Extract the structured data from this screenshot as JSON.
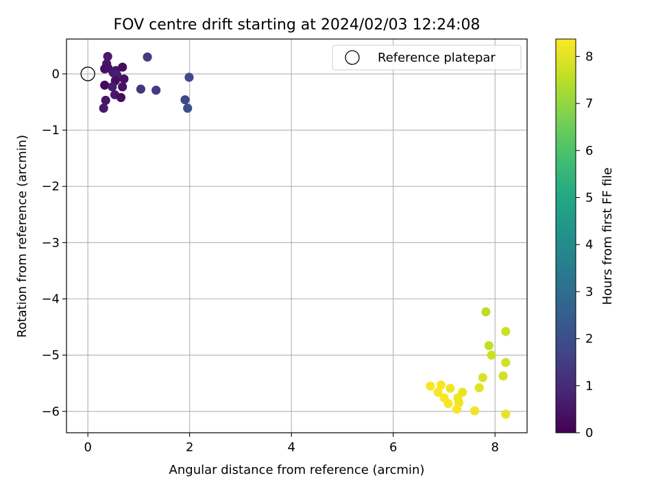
{
  "chart_data": {
    "type": "scatter",
    "title": "FOV centre drift starting at 2024/02/03 12:24:08",
    "xlabel": "Angular distance from reference (arcmin)",
    "ylabel": "Rotation from reference (arcmin)",
    "xlim": [
      -0.42,
      8.63
    ],
    "ylim": [
      -6.38,
      0.62
    ],
    "xticks": [
      0,
      2,
      4,
      6,
      8
    ],
    "yticks": [
      0,
      -1,
      -2,
      -3,
      -4,
      -5,
      -6
    ],
    "grid": true,
    "legend": {
      "placement": "top-right",
      "entries": [
        "Reference platepar"
      ]
    },
    "reference_point": {
      "x": 0,
      "y": 0,
      "label": "Reference platepar"
    },
    "colorbar": {
      "label": "Hours from first FF file",
      "colormap": "viridis",
      "range": [
        0,
        8.37
      ],
      "ticks": [
        0,
        1,
        2,
        3,
        4,
        5,
        6,
        7,
        8
      ]
    },
    "series": [
      {
        "points": [
          {
            "x": 0.39,
            "y": 0.31,
            "c": 0.6
          },
          {
            "x": 0.37,
            "y": 0.18,
            "c": 0.5
          },
          {
            "x": 0.33,
            "y": 0.09,
            "c": 0.3
          },
          {
            "x": 0.4,
            "y": 0.1,
            "c": 0.4
          },
          {
            "x": 0.55,
            "y": 0.06,
            "c": 0.5
          },
          {
            "x": 0.5,
            "y": 0.02,
            "c": 0.6
          },
          {
            "x": 0.68,
            "y": 0.12,
            "c": 0.3
          },
          {
            "x": 0.57,
            "y": -0.02,
            "c": 0.7
          },
          {
            "x": 0.71,
            "y": -0.09,
            "c": 0.4
          },
          {
            "x": 0.54,
            "y": -0.12,
            "c": 0.3
          },
          {
            "x": 0.33,
            "y": -0.2,
            "c": 0.2
          },
          {
            "x": 0.48,
            "y": -0.23,
            "c": 0.7
          },
          {
            "x": 0.68,
            "y": -0.23,
            "c": 0.4
          },
          {
            "x": 0.53,
            "y": -0.37,
            "c": 0.6
          },
          {
            "x": 0.65,
            "y": -0.42,
            "c": 0.3
          },
          {
            "x": 0.35,
            "y": -0.47,
            "c": 0.5
          },
          {
            "x": 0.31,
            "y": -0.61,
            "c": 0.6
          },
          {
            "x": 1.17,
            "y": 0.3,
            "c": 1.5
          },
          {
            "x": 1.04,
            "y": -0.27,
            "c": 1.3
          },
          {
            "x": 1.34,
            "y": -0.29,
            "c": 1.4
          },
          {
            "x": 1.99,
            "y": -0.06,
            "c": 1.9
          },
          {
            "x": 1.91,
            "y": -0.46,
            "c": 1.8
          },
          {
            "x": 1.96,
            "y": -0.61,
            "c": 2.0
          },
          {
            "x": 7.82,
            "y": -4.23,
            "c": 7.5
          },
          {
            "x": 8.21,
            "y": -4.58,
            "c": 7.7
          },
          {
            "x": 7.88,
            "y": -4.83,
            "c": 7.6
          },
          {
            "x": 7.93,
            "y": -5.0,
            "c": 7.7
          },
          {
            "x": 8.21,
            "y": -5.13,
            "c": 7.8
          },
          {
            "x": 8.16,
            "y": -5.37,
            "c": 7.8
          },
          {
            "x": 7.76,
            "y": -5.4,
            "c": 7.9
          },
          {
            "x": 6.73,
            "y": -5.55,
            "c": 8.3
          },
          {
            "x": 6.94,
            "y": -5.53,
            "c": 8.3
          },
          {
            "x": 7.12,
            "y": -5.59,
            "c": 8.2
          },
          {
            "x": 6.88,
            "y": -5.66,
            "c": 8.3
          },
          {
            "x": 7.69,
            "y": -5.58,
            "c": 8.0
          },
          {
            "x": 7.36,
            "y": -5.66,
            "c": 8.1
          },
          {
            "x": 7.0,
            "y": -5.76,
            "c": 8.3
          },
          {
            "x": 7.27,
            "y": -5.76,
            "c": 8.2
          },
          {
            "x": 7.08,
            "y": -5.86,
            "c": 8.3
          },
          {
            "x": 7.29,
            "y": -5.85,
            "c": 8.2
          },
          {
            "x": 7.25,
            "y": -5.96,
            "c": 8.3
          },
          {
            "x": 7.6,
            "y": -5.99,
            "c": 8.2
          },
          {
            "x": 8.21,
            "y": -6.05,
            "c": 8.1
          }
        ]
      }
    ]
  }
}
